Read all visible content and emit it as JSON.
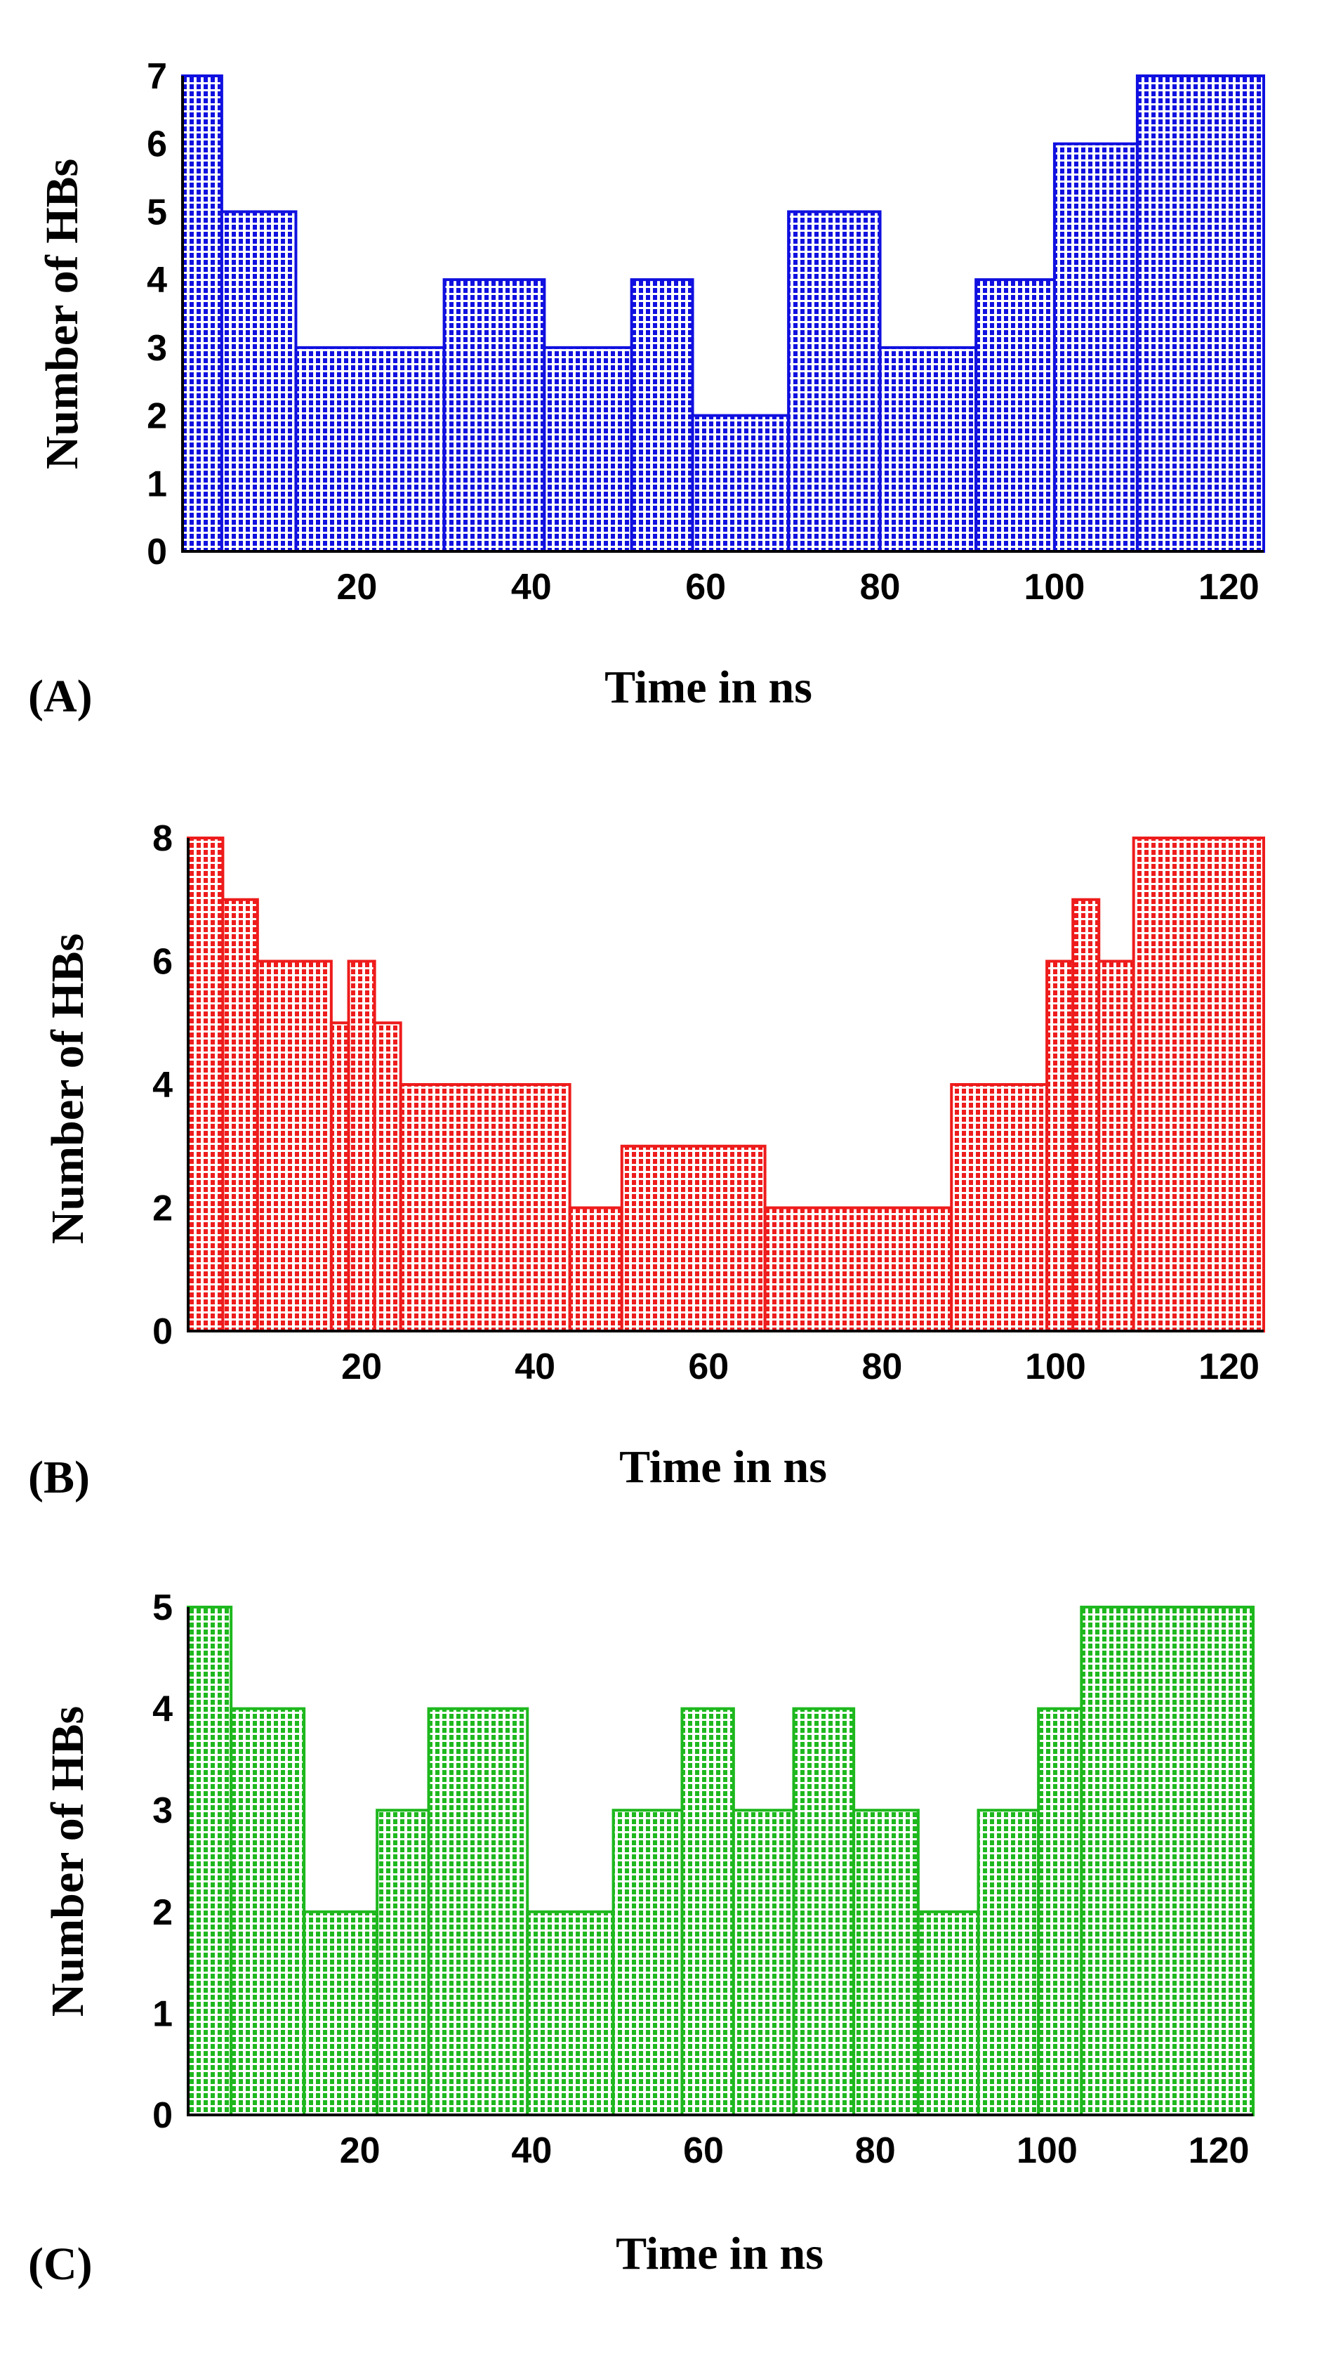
{
  "chart_data": [
    {
      "type": "bar",
      "panel_label": "(A)",
      "color": "#1010e0",
      "xlabel": "Time in ns",
      "ylabel": "Number of HBs",
      "xlim": [
        0,
        124
      ],
      "ylim": [
        0,
        7
      ],
      "xticks": [
        20,
        40,
        60,
        80,
        100,
        120
      ],
      "yticks": [
        0,
        1,
        2,
        3,
        4,
        5,
        6,
        7
      ],
      "segments": [
        {
          "start": 0,
          "end": 4.5,
          "value": 7
        },
        {
          "start": 4.5,
          "end": 13,
          "value": 5
        },
        {
          "start": 13,
          "end": 30,
          "value": 3
        },
        {
          "start": 30,
          "end": 41.5,
          "value": 4
        },
        {
          "start": 41.5,
          "end": 51.5,
          "value": 3
        },
        {
          "start": 51.5,
          "end": 58.5,
          "value": 4
        },
        {
          "start": 58.5,
          "end": 69.5,
          "value": 2
        },
        {
          "start": 69.5,
          "end": 80,
          "value": 5
        },
        {
          "start": 80,
          "end": 91,
          "value": 3
        },
        {
          "start": 91,
          "end": 100,
          "value": 4
        },
        {
          "start": 100,
          "end": 109.5,
          "value": 6
        },
        {
          "start": 109.5,
          "end": 124,
          "value": 7
        }
      ]
    },
    {
      "type": "bar",
      "panel_label": "(B)",
      "color": "#ee1c1c",
      "xlabel": "Time in ns",
      "ylabel": "Number of HBs",
      "xlim": [
        0,
        124
      ],
      "ylim": [
        0,
        8
      ],
      "xticks": [
        20,
        40,
        60,
        80,
        100,
        120
      ],
      "yticks": [
        0,
        2,
        4,
        6,
        8
      ],
      "segments": [
        {
          "start": 0,
          "end": 4,
          "value": 8
        },
        {
          "start": 4,
          "end": 8,
          "value": 7
        },
        {
          "start": 8,
          "end": 16.5,
          "value": 6
        },
        {
          "start": 16.5,
          "end": 18.5,
          "value": 5
        },
        {
          "start": 18.5,
          "end": 21.5,
          "value": 6
        },
        {
          "start": 21.5,
          "end": 24.5,
          "value": 5
        },
        {
          "start": 24.5,
          "end": 44,
          "value": 4
        },
        {
          "start": 44,
          "end": 50,
          "value": 2
        },
        {
          "start": 50,
          "end": 66.5,
          "value": 3
        },
        {
          "start": 66.5,
          "end": 88,
          "value": 2
        },
        {
          "start": 88,
          "end": 99,
          "value": 4
        },
        {
          "start": 99,
          "end": 102,
          "value": 6
        },
        {
          "start": 102,
          "end": 105,
          "value": 7
        },
        {
          "start": 105,
          "end": 109,
          "value": 6
        },
        {
          "start": 109,
          "end": 124,
          "value": 8
        }
      ]
    },
    {
      "type": "bar",
      "panel_label": "(C)",
      "color": "#1eb81e",
      "xlabel": "Time in ns",
      "ylabel": "Number of HBs",
      "xlim": [
        0,
        124
      ],
      "ylim": [
        0,
        5
      ],
      "xticks": [
        20,
        40,
        60,
        80,
        100,
        120
      ],
      "yticks": [
        0,
        1,
        2,
        3,
        4,
        5
      ],
      "segments": [
        {
          "start": 0,
          "end": 5,
          "value": 5
        },
        {
          "start": 5,
          "end": 13.5,
          "value": 4
        },
        {
          "start": 13.5,
          "end": 22,
          "value": 2
        },
        {
          "start": 22,
          "end": 28,
          "value": 3
        },
        {
          "start": 28,
          "end": 39.5,
          "value": 4
        },
        {
          "start": 39.5,
          "end": 49.5,
          "value": 2
        },
        {
          "start": 49.5,
          "end": 57.5,
          "value": 3
        },
        {
          "start": 57.5,
          "end": 63.5,
          "value": 4
        },
        {
          "start": 63.5,
          "end": 70.5,
          "value": 3
        },
        {
          "start": 70.5,
          "end": 77.5,
          "value": 4
        },
        {
          "start": 77.5,
          "end": 85,
          "value": 3
        },
        {
          "start": 85,
          "end": 92,
          "value": 2
        },
        {
          "start": 92,
          "end": 99,
          "value": 3
        },
        {
          "start": 99,
          "end": 104,
          "value": 4
        },
        {
          "start": 104,
          "end": 124,
          "value": 5
        }
      ]
    }
  ]
}
